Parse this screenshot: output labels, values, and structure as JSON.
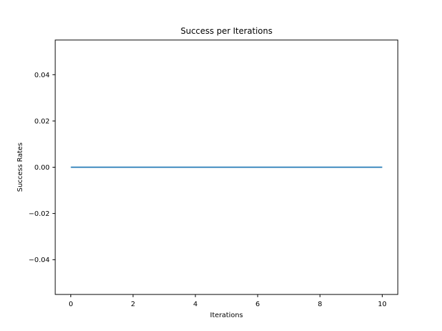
{
  "chart_data": {
    "type": "line",
    "title": "Success per Iterations",
    "xlabel": "Iterations",
    "ylabel": "Success Rates",
    "xlim": [
      -0.5,
      10.5
    ],
    "ylim": [
      -0.055,
      0.055
    ],
    "xticks": [
      0,
      2,
      4,
      6,
      8,
      10
    ],
    "xtick_labels": [
      "0",
      "2",
      "4",
      "6",
      "8",
      "10"
    ],
    "yticks": [
      0.04,
      0.02,
      0.0,
      -0.02,
      -0.04
    ],
    "ytick_labels": [
      "0.04",
      "0.02",
      "0.00",
      "−0.02",
      "−0.04"
    ],
    "grid": false,
    "series": [
      {
        "color": "#1f77b4",
        "x": [
          0,
          1,
          2,
          3,
          4,
          5,
          6,
          7,
          8,
          9,
          10
        ],
        "y": [
          0,
          0,
          0,
          0,
          0,
          0,
          0,
          0,
          0,
          0,
          0
        ]
      }
    ]
  }
}
